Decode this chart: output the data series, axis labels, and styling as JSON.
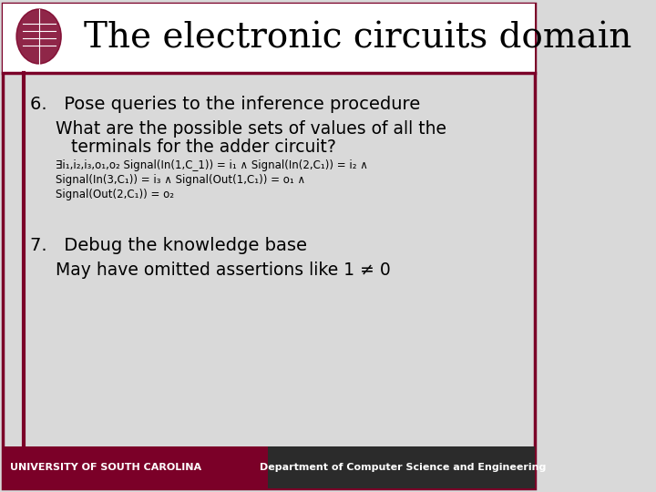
{
  "title": "The electronic circuits domain",
  "background_color": "#d9d9d9",
  "header_bg": "#ffffff",
  "border_color": "#7b0028",
  "title_color": "#000000",
  "title_fontsize": 28,
  "item6_header": "6.   Pose queries to the inference procedure",
  "item6_sub1": "What are the possible sets of values of all the",
  "item6_sub2": "terminals for the adder circuit?",
  "item6_formula_line1": "∃i₁,i₂,i₃,o₁,o₂ Signal(In(1,C_1)) = i₁ ∧ Signal(In(2,C₁)) = i₂ ∧",
  "item6_formula_line2": "Signal(In(3,C₁)) = i₃ ∧ Signal(Out(1,C₁)) = o₁ ∧",
  "item6_formula_line3": "Signal(Out(2,C₁)) = o₂",
  "item7_header": "7.   Debug the knowledge base",
  "item7_sub": "May have omitted assertions like 1 ≠ 0",
  "footer_left_bg": "#7b0028",
  "footer_left_text": "UNIVERSITY OF SOUTH CAROLINA",
  "footer_left_color": "#ffffff",
  "footer_right_bg": "#2b2b2b",
  "footer_right_text": "Department of Computer Science and Engineering",
  "footer_right_color": "#ffffff"
}
